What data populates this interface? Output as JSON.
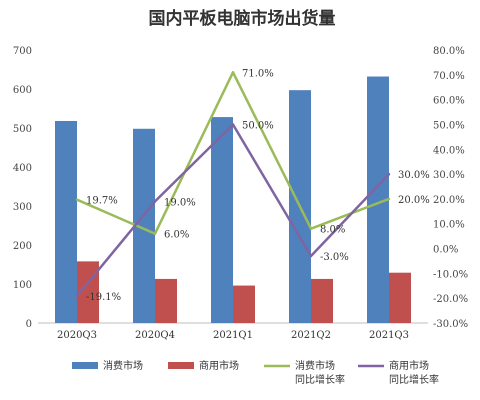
{
  "chart_data": {
    "type": "bar",
    "title": "国内平板电脑市场出货量",
    "categories": [
      "2020Q3",
      "2020Q4",
      "2021Q1",
      "2021Q2",
      "2021Q3"
    ],
    "series": [
      {
        "name": "消费市场",
        "kind": "bar",
        "axis": "left",
        "color": "#4f81bd",
        "values": [
          518,
          498,
          528,
          597,
          632
        ]
      },
      {
        "name": "商用市场",
        "kind": "bar",
        "axis": "left",
        "color": "#c0504d",
        "values": [
          158,
          113,
          96,
          113,
          129
        ]
      },
      {
        "name": "消费市场同比增长率",
        "legend_lines": [
          "消费市场",
          "同比增长率"
        ],
        "kind": "line",
        "axis": "right",
        "color": "#9bbb59",
        "values": [
          19.7,
          6.0,
          71.0,
          8.0,
          20.0
        ],
        "labels": [
          "19.7%",
          "6.0%",
          "71.0%",
          "8.0%",
          "20.0%"
        ]
      },
      {
        "name": "商用市场同比增长率",
        "legend_lines": [
          "商用市场",
          "同比增长率"
        ],
        "kind": "line",
        "axis": "right",
        "color": "#8064a2",
        "values": [
          -19.1,
          19.0,
          50.0,
          -3.0,
          30.0
        ],
        "labels": [
          "-19.1%",
          "19.0%",
          "50.0%",
          "-3.0%",
          "30.0%"
        ]
      }
    ],
    "y_left": {
      "min": 0,
      "max": 700,
      "step": 100,
      "ticks": [
        "0",
        "100",
        "200",
        "300",
        "400",
        "500",
        "600",
        "700"
      ]
    },
    "y_right": {
      "min": -30,
      "max": 80,
      "step": 10,
      "ticks": [
        "-30.0%",
        "-20.0%",
        "-10.0%",
        "0.0%",
        "10.0%",
        "20.0%",
        "30.0%",
        "40.0%",
        "50.0%",
        "60.0%",
        "70.0%",
        "80.0%"
      ]
    },
    "grid": false,
    "legend_position": "bottom"
  }
}
